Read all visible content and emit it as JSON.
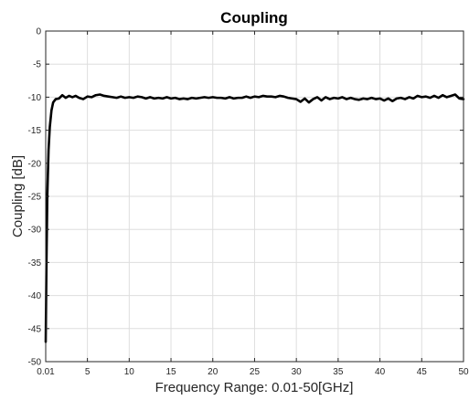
{
  "chart_data": {
    "type": "line",
    "title": "Coupling",
    "xlabel": "Frequency Range: 0.01-50[GHz]",
    "ylabel": "Coupling [dB]",
    "xlim": [
      0.01,
      50
    ],
    "ylim": [
      -50,
      0
    ],
    "grid": true,
    "x_ticks": [
      0.01,
      5,
      10,
      15,
      20,
      25,
      30,
      35,
      40,
      45,
      50
    ],
    "x_tick_labels": [
      "0.01",
      "5",
      "10",
      "15",
      "20",
      "25",
      "30",
      "35",
      "40",
      "45",
      "50"
    ],
    "y_ticks": [
      0,
      -5,
      -10,
      -15,
      -20,
      -25,
      -30,
      -35,
      -40,
      -45,
      -50
    ],
    "y_tick_labels": [
      "0",
      "-5",
      "-10",
      "-15",
      "-20",
      "-25",
      "-30",
      "-35",
      "-40",
      "-45",
      "-50"
    ],
    "series": [
      {
        "color": "#000000",
        "x": [
          0.01,
          0.1,
          0.2,
          0.35,
          0.5,
          0.7,
          0.9,
          1.2,
          1.6,
          2.0,
          2.4,
          2.8,
          3.2,
          3.6,
          4.0,
          4.5,
          5.0,
          5.5,
          6.0,
          6.5,
          7.0,
          7.5,
          8.0,
          8.5,
          9.0,
          9.5,
          10.0,
          10.5,
          11.0,
          11.5,
          12.0,
          12.5,
          13.0,
          13.5,
          14.0,
          14.5,
          15.0,
          15.5,
          16.0,
          16.5,
          17.0,
          17.5,
          18.0,
          18.5,
          19.0,
          19.5,
          20.0,
          20.5,
          21.0,
          21.5,
          22.0,
          22.5,
          23.0,
          23.5,
          24.0,
          24.5,
          25.0,
          25.5,
          26.0,
          26.5,
          27.0,
          27.5,
          28.0,
          28.5,
          29.0,
          29.5,
          30.0,
          30.5,
          31.0,
          31.5,
          32.0,
          32.5,
          33.0,
          33.5,
          34.0,
          34.5,
          35.0,
          35.5,
          36.0,
          36.5,
          37.0,
          37.5,
          38.0,
          38.5,
          39.0,
          39.5,
          40.0,
          40.5,
          41.0,
          41.5,
          42.0,
          42.5,
          43.0,
          43.5,
          44.0,
          44.5,
          45.0,
          45.5,
          46.0,
          46.5,
          47.0,
          47.5,
          48.0,
          48.5,
          49.0,
          49.5,
          50.0
        ],
        "y": [
          -47,
          -35,
          -25,
          -18,
          -14.5,
          -12,
          -10.8,
          -10.3,
          -10.2,
          -9.7,
          -10.1,
          -9.8,
          -10.0,
          -9.8,
          -10.1,
          -10.3,
          -9.9,
          -10.0,
          -9.7,
          -9.6,
          -9.8,
          -9.9,
          -10.0,
          -10.1,
          -9.9,
          -10.1,
          -10.0,
          -10.1,
          -9.9,
          -10.0,
          -10.2,
          -10.0,
          -10.2,
          -10.1,
          -10.2,
          -10.0,
          -10.2,
          -10.1,
          -10.3,
          -10.2,
          -10.3,
          -10.1,
          -10.2,
          -10.1,
          -10.0,
          -10.1,
          -10.0,
          -10.1,
          -10.1,
          -10.2,
          -10.0,
          -10.2,
          -10.1,
          -10.1,
          -9.9,
          -10.1,
          -9.9,
          -10.0,
          -9.8,
          -9.9,
          -9.9,
          -10.0,
          -9.8,
          -9.9,
          -10.1,
          -10.2,
          -10.3,
          -10.7,
          -10.2,
          -10.8,
          -10.3,
          -10.0,
          -10.5,
          -10.0,
          -10.3,
          -10.1,
          -10.2,
          -10.0,
          -10.3,
          -10.1,
          -10.3,
          -10.4,
          -10.2,
          -10.3,
          -10.1,
          -10.3,
          -10.2,
          -10.5,
          -10.2,
          -10.6,
          -10.2,
          -10.1,
          -10.3,
          -10.0,
          -10.2,
          -9.8,
          -10.0,
          -9.9,
          -10.1,
          -9.8,
          -10.1,
          -9.7,
          -10.0,
          -9.8,
          -9.6,
          -10.2,
          -10.3
        ]
      }
    ]
  }
}
